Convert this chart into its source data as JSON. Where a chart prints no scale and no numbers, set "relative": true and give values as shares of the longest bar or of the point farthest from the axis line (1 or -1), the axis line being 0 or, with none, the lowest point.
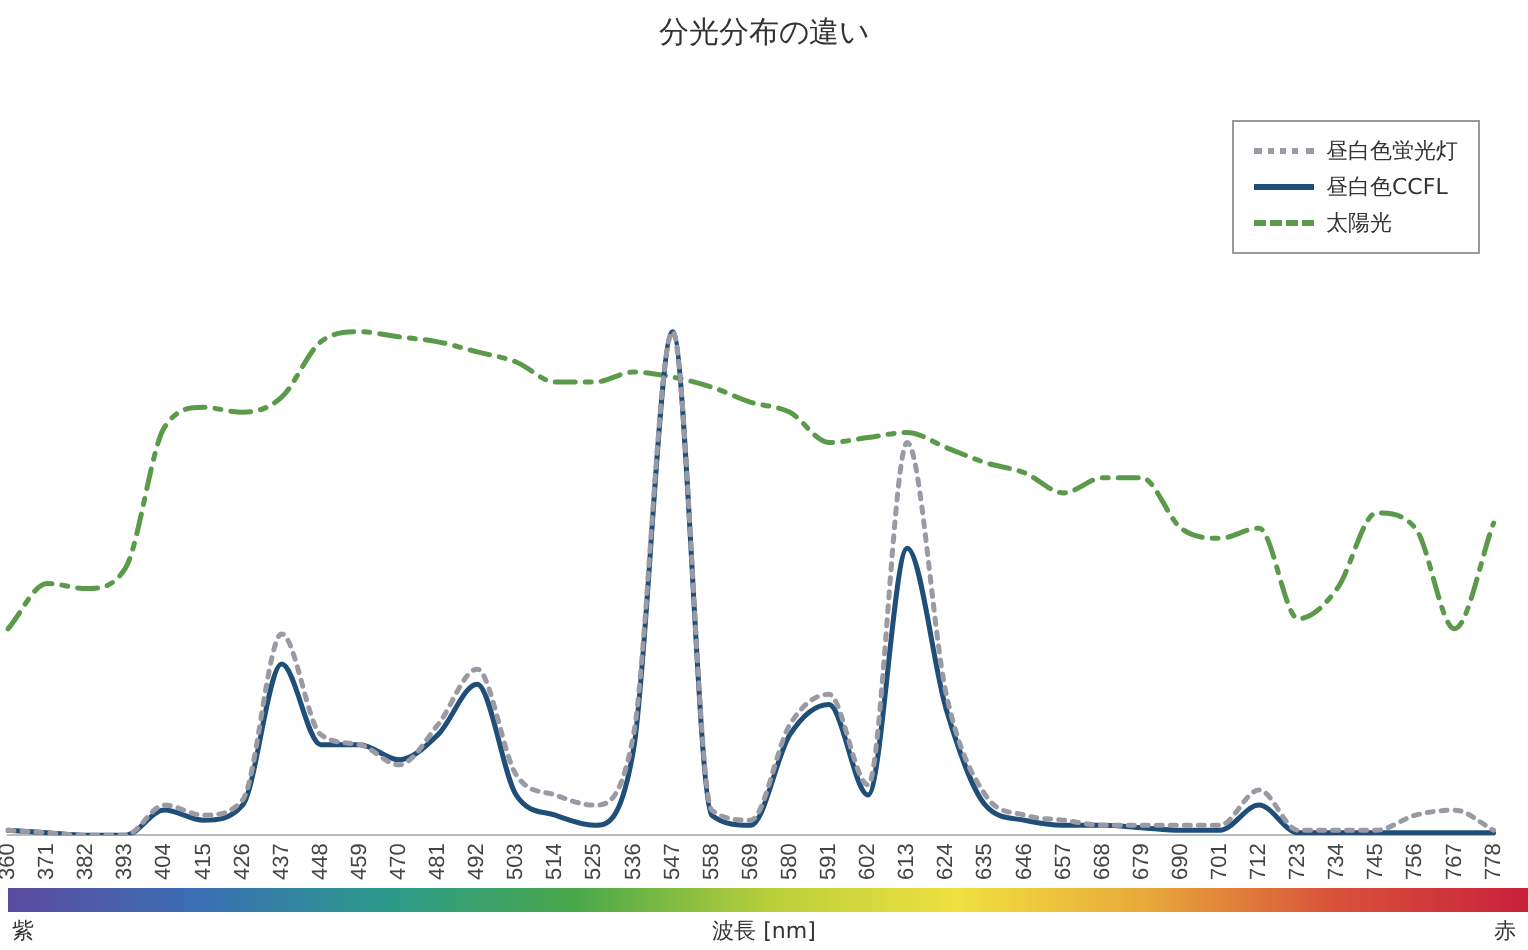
{
  "chart_data": {
    "type": "line",
    "title": "分光分布の違い",
    "xlabel": "波長 [nm]",
    "relative": true,
    "legend": "top right",
    "marker": "none",
    "annotations": [
      "紫",
      "赤"
    ],
    "categories": [
      "360",
      "371",
      "382",
      "393",
      "404",
      "415",
      "426",
      "437",
      "448",
      "459",
      "470",
      "481",
      "492",
      "503",
      "514",
      "525",
      "536",
      "547",
      "558",
      "569",
      "580",
      "591",
      "602",
      "613",
      "624",
      "635",
      "646",
      "657",
      "668",
      "679",
      "690",
      "701",
      "712",
      "723",
      "734",
      "745",
      "756",
      "767",
      "778"
    ],
    "series": [
      {
        "name": "昼白色蛍光灯",
        "color": "#9a9aa5",
        "line_style": "dotted",
        "values": [
          0.01,
          0.005,
          0,
          0,
          0.06,
          0.04,
          0.07,
          0.4,
          0.2,
          0.18,
          0.14,
          0.22,
          0.33,
          0.12,
          0.08,
          0.06,
          0.2,
          1.0,
          0.05,
          0.03,
          0.22,
          0.28,
          0.1,
          0.78,
          0.28,
          0.08,
          0.04,
          0.03,
          0.02,
          0.02,
          0.02,
          0.02,
          0.09,
          0.01,
          0.01,
          0.01,
          0.04,
          0.05,
          0.01
        ]
      },
      {
        "name": "昼白色CCFL",
        "color": "#1f4e79",
        "line_style": "solid",
        "values": [
          0.01,
          0.005,
          0,
          0,
          0.05,
          0.03,
          0.06,
          0.34,
          0.18,
          0.18,
          0.15,
          0.2,
          0.3,
          0.08,
          0.04,
          0.02,
          0.17,
          1.0,
          0.04,
          0.02,
          0.2,
          0.26,
          0.08,
          0.57,
          0.25,
          0.06,
          0.03,
          0.02,
          0.02,
          0.015,
          0.01,
          0.01,
          0.06,
          0.005,
          0.005,
          0.005,
          0.005,
          0.005,
          0.005
        ]
      },
      {
        "name": "太陽光",
        "color": "#5a9a4a",
        "line_style": "dashed",
        "values": [
          0.41,
          0.5,
          0.49,
          0.53,
          0.81,
          0.85,
          0.84,
          0.87,
          0.98,
          1.0,
          0.99,
          0.98,
          0.96,
          0.94,
          0.9,
          0.9,
          0.92,
          0.91,
          0.89,
          0.86,
          0.84,
          0.78,
          0.79,
          0.8,
          0.77,
          0.74,
          0.72,
          0.68,
          0.71,
          0.71,
          0.61,
          0.59,
          0.61,
          0.43,
          0.49,
          0.64,
          0.61,
          0.41,
          0.62
        ]
      }
    ]
  }
}
